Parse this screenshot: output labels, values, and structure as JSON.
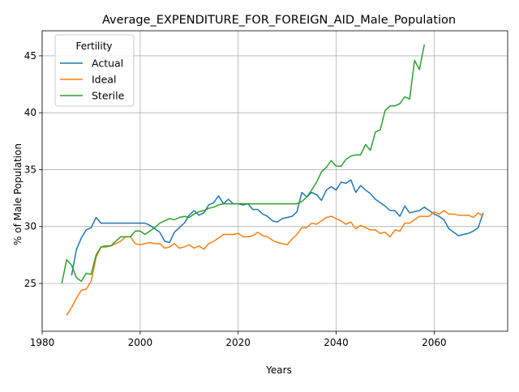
{
  "chart_data": {
    "type": "line",
    "title": "Average_EXPENDITURE_FOR_FOREIGN_AID_Male_Population",
    "xlabel": "Years",
    "ylabel": "% of Male Population",
    "xlim": [
      1980,
      2075
    ],
    "ylim": [
      20.8,
      47.2
    ],
    "x_ticks": [
      1980,
      2000,
      2020,
      2040,
      2060
    ],
    "y_ticks": [
      25,
      30,
      35,
      40,
      45
    ],
    "grid": true,
    "legend": {
      "title": "Fertility",
      "placement": "top-left"
    },
    "series": [
      {
        "name": "Actual",
        "color": "#1f77b4",
        "x": [
          1986,
          1987,
          1988,
          1989,
          1990,
          1991,
          1992,
          1993,
          1994,
          1995,
          1996,
          1997,
          1998,
          1999,
          2000,
          2001,
          2002,
          2003,
          2004,
          2005,
          2006,
          2007,
          2008,
          2009,
          2010,
          2011,
          2012,
          2013,
          2014,
          2015,
          2016,
          2017,
          2018,
          2019,
          2020,
          2021,
          2022,
          2023,
          2024,
          2025,
          2026,
          2027,
          2028,
          2029,
          2030,
          2031,
          2032,
          2033,
          2034,
          2035,
          2036,
          2037,
          2038,
          2039,
          2040,
          2041,
          2042,
          2043,
          2044,
          2045,
          2046,
          2047,
          2048,
          2049,
          2050,
          2051,
          2052,
          2053,
          2054,
          2055,
          2056,
          2057,
          2058,
          2059,
          2060,
          2061,
          2062,
          2063,
          2064,
          2065,
          2066,
          2067,
          2068,
          2069,
          2070
        ],
        "y": [
          25.7,
          28.0,
          29.0,
          29.7,
          29.9,
          30.8,
          30.3,
          30.3,
          30.3,
          30.3,
          30.3,
          30.3,
          30.3,
          30.3,
          30.3,
          30.3,
          30.1,
          29.8,
          29.5,
          28.7,
          28.6,
          29.5,
          29.9,
          30.3,
          31.0,
          31.4,
          31.0,
          31.2,
          31.9,
          32.1,
          32.7,
          32.0,
          32.4,
          32.0,
          32.0,
          31.9,
          32.0,
          31.5,
          31.5,
          31.1,
          30.9,
          30.5,
          30.4,
          30.7,
          30.8,
          30.9,
          31.3,
          33.0,
          32.6,
          33.0,
          32.8,
          32.3,
          33.2,
          33.5,
          33.2,
          33.9,
          33.8,
          34.1,
          33.0,
          33.6,
          33.2,
          32.9,
          32.4,
          32.1,
          31.8,
          31.4,
          31.4,
          30.9,
          31.8,
          31.2,
          31.3,
          31.4,
          31.7,
          31.4,
          31.1,
          30.9,
          30.6,
          29.8,
          29.5,
          29.2,
          29.3,
          29.4,
          29.6,
          29.9,
          31.2
        ]
      },
      {
        "name": "Ideal",
        "color": "#ff7f0e",
        "x": [
          1985,
          1986,
          1987,
          1988,
          1989,
          1990,
          1991,
          1992,
          1993,
          1994,
          1995,
          1996,
          1997,
          1998,
          1999,
          2000,
          2001,
          2002,
          2003,
          2004,
          2005,
          2006,
          2007,
          2008,
          2009,
          2010,
          2011,
          2012,
          2013,
          2014,
          2015,
          2016,
          2017,
          2018,
          2019,
          2020,
          2021,
          2022,
          2023,
          2024,
          2025,
          2026,
          2027,
          2028,
          2029,
          2030,
          2031,
          2032,
          2033,
          2034,
          2035,
          2036,
          2037,
          2038,
          2039,
          2040,
          2041,
          2042,
          2043,
          2044,
          2045,
          2046,
          2047,
          2048,
          2049,
          2050,
          2051,
          2052,
          2053,
          2054,
          2055,
          2056,
          2057,
          2058,
          2059,
          2060,
          2061,
          2062,
          2063,
          2064,
          2065,
          2066,
          2067,
          2068,
          2069,
          2070
        ],
        "y": [
          22.2,
          22.9,
          23.7,
          24.4,
          24.5,
          25.2,
          27.3,
          28.2,
          28.2,
          28.3,
          28.5,
          28.7,
          29.1,
          29.1,
          28.5,
          28.4,
          28.5,
          28.6,
          28.5,
          28.5,
          28.1,
          28.2,
          28.5,
          28.1,
          28.2,
          28.4,
          28.1,
          28.3,
          28.0,
          28.5,
          28.7,
          29.0,
          29.3,
          29.3,
          29.3,
          29.4,
          29.1,
          29.1,
          29.2,
          29.5,
          29.2,
          29.1,
          28.8,
          28.6,
          28.5,
          28.4,
          28.9,
          29.3,
          29.9,
          29.9,
          30.3,
          30.2,
          30.5,
          30.8,
          30.9,
          30.7,
          30.5,
          30.2,
          30.4,
          29.8,
          30.1,
          29.9,
          29.7,
          29.7,
          29.4,
          29.5,
          29.1,
          29.7,
          29.6,
          30.3,
          30.3,
          30.6,
          30.9,
          30.9,
          30.9,
          31.3,
          31.1,
          31.4,
          31.1,
          31.1,
          31.0,
          31.0,
          31.0,
          30.8,
          31.2,
          30.9
        ]
      },
      {
        "name": "Sterile",
        "color": "#2ca02c",
        "x": [
          1984,
          1985,
          1986,
          1987,
          1988,
          1989,
          1990,
          1991,
          1992,
          1993,
          1994,
          1995,
          1996,
          1997,
          1998,
          1999,
          2000,
          2001,
          2002,
          2003,
          2004,
          2005,
          2006,
          2007,
          2008,
          2009,
          2010,
          2011,
          2012,
          2013,
          2014,
          2015,
          2016,
          2017,
          2018,
          2019,
          2020,
          2021,
          2022,
          2023,
          2024,
          2025,
          2026,
          2027,
          2028,
          2029,
          2030,
          2031,
          2032,
          2033,
          2034,
          2035,
          2036,
          2037,
          2038,
          2039,
          2040,
          2041,
          2042,
          2043,
          2044,
          2045,
          2046,
          2047,
          2048,
          2049,
          2050,
          2051,
          2052,
          2053,
          2054,
          2055,
          2056,
          2057,
          2058
        ],
        "y": [
          25.0,
          27.1,
          26.6,
          25.5,
          25.2,
          25.9,
          25.8,
          27.5,
          28.2,
          28.3,
          28.3,
          28.7,
          29.1,
          29.1,
          29.1,
          29.6,
          29.6,
          29.3,
          29.6,
          29.9,
          30.3,
          30.5,
          30.7,
          30.6,
          30.8,
          30.9,
          30.8,
          31.1,
          31.3,
          31.4,
          31.6,
          31.7,
          31.9,
          32.0,
          32.0,
          32.0,
          32.0,
          32.0,
          32.0,
          32.0,
          32.0,
          32.0,
          32.0,
          32.0,
          32.0,
          32.0,
          32.0,
          32.0,
          32.0,
          32.2,
          32.6,
          33.2,
          33.9,
          34.8,
          35.2,
          35.8,
          35.3,
          35.3,
          35.9,
          36.2,
          36.3,
          36.3,
          37.2,
          36.7,
          38.3,
          38.5,
          40.2,
          40.6,
          40.6,
          40.8,
          41.4,
          41.2,
          44.6,
          43.8,
          46.0
        ]
      }
    ]
  }
}
